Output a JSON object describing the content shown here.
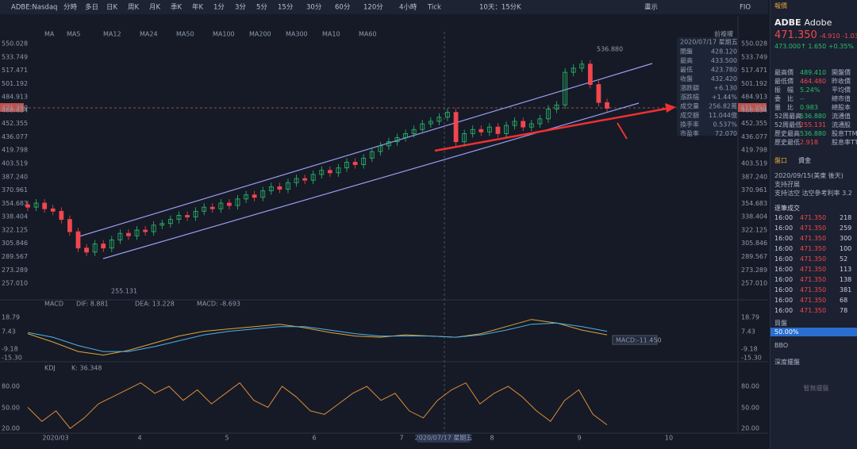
{
  "toolbar": {
    "symbol": "ADBE:Nasdaq",
    "periods": [
      "分時",
      "多日",
      "日K",
      "周K",
      "月K",
      "季K",
      "年K",
      "1分",
      "3分",
      "5分",
      "15分",
      "30分",
      "60分",
      "120分",
      "4小時",
      "Tick"
    ],
    "range": "10天：15分K",
    "right": "畫示",
    "fio": "FIO"
  },
  "price_chart": {
    "indicator": "MA",
    "ma_labels": [
      "MA5",
      "MA12",
      "MA24",
      "MA50",
      "MA100",
      "MA200",
      "MA300",
      "MA10",
      "MA60"
    ],
    "ma_colors": [
      "#d9c463",
      "#4c8de0",
      "#d14bd0",
      "#4ab0a0",
      "#d97f3a",
      "#b24444",
      "#7b5be6",
      "#888888",
      "#bb4488"
    ],
    "link": "前複權",
    "y_labels": [
      "550.028",
      "533.749",
      "517.471",
      "501.192",
      "484.913",
      "468.634",
      "452.355",
      "436.077",
      "419.798",
      "403.519",
      "387.240",
      "370.961",
      "354.683",
      "338.404",
      "322.125",
      "305.846",
      "289.567",
      "273.289",
      "257.010"
    ],
    "ylim": [
      257.01,
      550.028
    ],
    "high_label": "536.880",
    "low_label": "255.131",
    "current_label": "471.350",
    "closes": [
      350,
      355,
      348,
      345,
      335,
      320,
      300,
      295,
      305,
      300,
      310,
      318,
      315,
      322,
      320,
      328,
      330,
      335,
      340,
      338,
      345,
      350,
      348,
      355,
      352,
      360,
      365,
      362,
      370,
      375,
      372,
      380,
      385,
      383,
      390,
      395,
      392,
      398,
      405,
      402,
      410,
      418,
      425,
      430,
      435,
      440,
      445,
      452,
      455,
      460,
      466,
      430,
      440,
      445,
      442,
      448,
      440,
      450,
      455,
      448,
      452,
      458,
      470,
      475,
      515,
      520,
      525,
      500,
      478,
      471
    ]
  },
  "info_box": {
    "date": "2020/07/17 星期五",
    "rows": [
      [
        "開盤",
        "428.120"
      ],
      [
        "最高",
        "433.500"
      ],
      [
        "最低",
        "423.780"
      ],
      [
        "收盤",
        "432.420"
      ],
      [
        "漲跌額",
        "+6.130"
      ],
      [
        "漲跌幅",
        "+1.44%"
      ],
      [
        "成交量",
        "256.82萬"
      ],
      [
        "成交額",
        "11.044億"
      ],
      [
        "換手率",
        "0.537%"
      ],
      [
        "市盈率",
        "72.070"
      ]
    ]
  },
  "macd": {
    "title": "MACD",
    "dif": "DIF: 8.881",
    "dea": "DEA: 13.228",
    "macd": "MACD: -8.693",
    "y_labels": [
      "18.79",
      "7.43",
      "-9.18",
      "-15.30"
    ],
    "ylim": [
      -15.3,
      18.79
    ],
    "dif_values": [
      5,
      -2,
      -10,
      -13,
      -9,
      -3,
      3,
      7,
      9,
      11,
      13,
      10,
      6,
      3,
      2,
      4,
      3,
      2,
      5,
      11,
      17,
      14,
      8,
      4
    ],
    "dea_values": [
      6,
      2,
      -5,
      -10,
      -10,
      -6,
      -1,
      4,
      7,
      9,
      11,
      11,
      8,
      5,
      3,
      3,
      3,
      2,
      4,
      8,
      13,
      14,
      11,
      7
    ],
    "box": "MACD:-11.450"
  },
  "kdj": {
    "title": "KDJ",
    "k": "K: 36.348",
    "y_labels": [
      "80.00",
      "50.00",
      "20.00"
    ],
    "ylim": [
      20,
      80
    ],
    "k_values": [
      50,
      30,
      45,
      20,
      35,
      55,
      65,
      75,
      85,
      70,
      80,
      60,
      75,
      55,
      70,
      85,
      60,
      50,
      80,
      65,
      45,
      40,
      55,
      70,
      80,
      60,
      70,
      45,
      35,
      60,
      75,
      85,
      55,
      70,
      80,
      65,
      45,
      30,
      60,
      75,
      40,
      25
    ]
  },
  "x_labels": [
    "2020/03",
    "4",
    "5",
    "6",
    "7",
    "8",
    "9",
    "10"
  ],
  "crosshair_date": "2020/07/17 星期五",
  "right_panel": {
    "tab": "報價",
    "symbol": "ADBE",
    "name": "Adobe",
    "price": "471.350",
    "change": "-4.910 -1.03%",
    "after": "473.000↑ 1.650 +0.35%",
    "stats": [
      [
        "最高價",
        "489.410",
        "開盤價"
      ],
      [
        "最低價",
        "464.480",
        "昨收價"
      ],
      [
        "振　幅",
        "5.24%",
        "平均價"
      ],
      [
        "委　比",
        "--",
        "總市值"
      ],
      [
        "量　比",
        "0.983",
        "總股本"
      ],
      [
        "52周最高",
        "536.880",
        "流通值"
      ],
      [
        "52周最低",
        "255.131",
        "流通股"
      ],
      [
        "歷史最高",
        "536.880",
        "股息TTM"
      ],
      [
        "歷史最低",
        "2.918",
        "股息率TTM"
      ]
    ],
    "tabs2": [
      "盤口",
      "資金"
    ],
    "notice": "2020/09/15(美東 後天)",
    "support1": "支持孖展",
    "support2": "支持沽空 沽空參考利率 3.2",
    "trades_title": "逐筆成交",
    "trades": [
      [
        "16:00",
        "471.350",
        "218"
      ],
      [
        "16:00",
        "471.350",
        "259"
      ],
      [
        "16:00",
        "471.350",
        "300"
      ],
      [
        "16:00",
        "471.350",
        "100"
      ],
      [
        "16:00",
        "471.350",
        "52"
      ],
      [
        "16:00",
        "471.350",
        "113"
      ],
      [
        "16:00",
        "471.350",
        "138"
      ],
      [
        "16:00",
        "471.350",
        "381"
      ],
      [
        "16:00",
        "471.350",
        "68"
      ],
      [
        "16:00",
        "471.350",
        "78"
      ]
    ],
    "buysell": "買盤",
    "ratio": "50.00%",
    "bbo": "BBO",
    "depth": "深度擺盤",
    "empty": "暫無擺盤"
  }
}
